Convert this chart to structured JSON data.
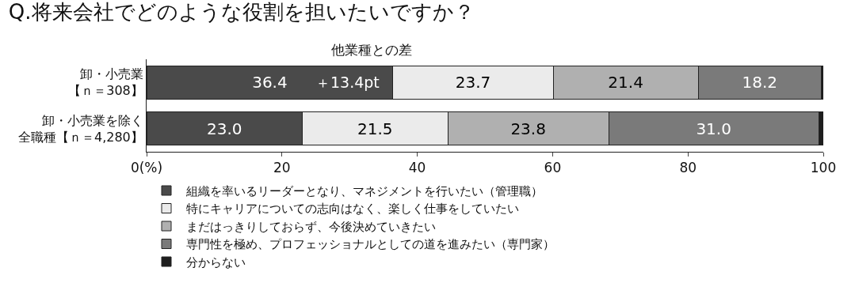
{
  "chart_data": {
    "type": "bar",
    "orientation": "horizontal",
    "stacked": true,
    "title": "Q.将来会社でどのような役割を担いたいですか？",
    "categories": [
      "卸・小売業【ｎ＝308】",
      "卸・小売業を除く全職種【ｎ＝4,280】"
    ],
    "series": [
      {
        "name": "組織を率いるリーダーとなり、マネジメントを行いたい（管理職）",
        "color": "#4a4a4a",
        "values": [
          36.4,
          23.0
        ],
        "value_labels": [
          "36.4",
          "23.0"
        ]
      },
      {
        "name": "特にキャリアについての志向はなく、楽しく仕事をしていたい",
        "color": "#ebebeb",
        "values": [
          23.7,
          21.5
        ],
        "value_labels": [
          "23.7",
          "21.5"
        ]
      },
      {
        "name": "まだはっきりしておらず、今後決めていきたい",
        "color": "#b0b0b0",
        "values": [
          21.4,
          23.8
        ],
        "value_labels": [
          "21.4",
          "23.8"
        ]
      },
      {
        "name": "専門性を極め、プロフェッショナルとしての道を進みたい（専門家）",
        "color": "#7a7a7a",
        "values": [
          18.2,
          31.0
        ],
        "value_labels": [
          "18.2",
          "31.0"
        ]
      },
      {
        "name": "分からない",
        "color": "#1e1e1e",
        "values": [
          0.3,
          0.7
        ],
        "value_labels": [
          null,
          null
        ]
      }
    ],
    "xlim": [
      0,
      100
    ],
    "xticks": [
      {
        "value": 0,
        "label": "0(%)"
      },
      20,
      40,
      60,
      80,
      100
    ],
    "legend": "bottom left",
    "annotations": [
      {
        "text": "＋13.4pt",
        "x": 29.7,
        "y": "卸・小売業【ｎ＝308】"
      },
      "他業種との差"
    ]
  }
}
